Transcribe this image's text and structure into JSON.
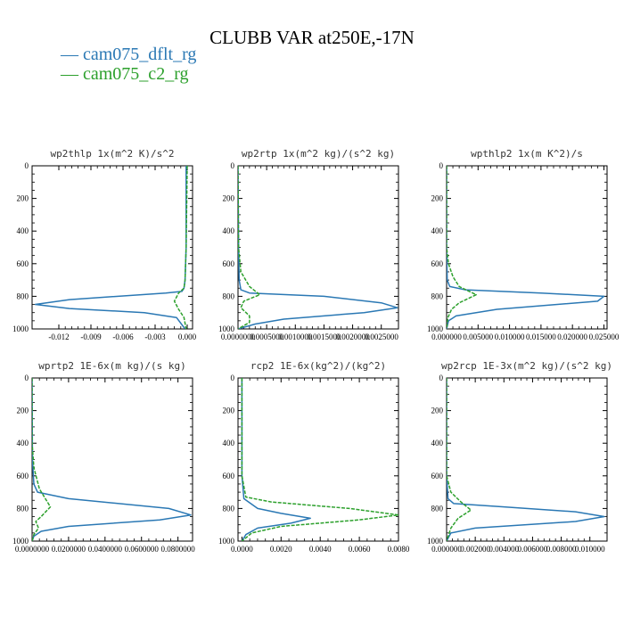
{
  "title": "CLUBB VAR at250E,-17N",
  "legend": [
    {
      "label": "— cam075_dflt_rg",
      "color": "#2a78b4"
    },
    {
      "label": "— cam075_c2_rg",
      "color": "#2ca02c"
    }
  ],
  "chart_data": [
    {
      "type": "line",
      "title": "wp2thlp  1x(m^2 K)/s^2",
      "xlim": [
        -0.0145,
        0.0005
      ],
      "ylim": [
        1000,
        0
      ],
      "xticks": [
        -0.012,
        -0.009,
        -0.006,
        -0.003,
        0.0
      ],
      "xtick_labels": [
        "-0.012",
        "-0.009",
        "-0.006",
        "-0.003",
        "0.000"
      ],
      "yticks": [
        0,
        200,
        400,
        600,
        800,
        1000
      ],
      "series": [
        {
          "name": "cam075_dflt_rg",
          "color": "#2a78b4",
          "x": [
            -0.0001,
            -0.0001,
            -0.0002,
            -0.0003,
            -0.0005,
            -0.002,
            -0.011,
            -0.0142,
            -0.011,
            -0.004,
            -0.001,
            -0.0002
          ],
          "y": [
            0,
            500,
            700,
            750,
            770,
            780,
            820,
            850,
            875,
            900,
            930,
            1000
          ]
        },
        {
          "name": "cam075_c2_rg",
          "color": "#2ca02c",
          "dashed": true,
          "x": [
            0.0,
            -0.0001,
            -0.0002,
            -0.0003,
            -0.0008,
            -0.0012,
            -0.0008,
            -0.0003,
            -0.0001
          ],
          "y": [
            0,
            500,
            700,
            750,
            780,
            830,
            880,
            930,
            1000
          ]
        }
      ]
    },
    {
      "type": "line",
      "title": "wp2rtp  1x(m^2 kg)/(s^2 kg)",
      "xlim": [
        0,
        0.0028
      ],
      "ylim": [
        1000,
        0
      ],
      "xticks": [
        0,
        0.0005,
        0.001,
        0.0015,
        0.002,
        0.0025
      ],
      "xtick_labels": [
        "0.0000000",
        "0.0005000",
        "0.0010000",
        "0.0015000",
        "0.0020000",
        "0.0025000"
      ],
      "yticks": [
        0,
        200,
        400,
        600,
        800,
        1000
      ],
      "series": [
        {
          "name": "cam075_dflt_rg",
          "color": "#2a78b4",
          "x": [
            0.0,
            1e-05,
            2e-05,
            5e-05,
            0.0002,
            0.0015,
            0.0025,
            0.00278,
            0.0022,
            0.0008,
            0.0003,
            0.0
          ],
          "y": [
            0,
            500,
            700,
            760,
            780,
            800,
            840,
            870,
            900,
            940,
            970,
            1000
          ]
        },
        {
          "name": "cam075_c2_rg",
          "color": "#2ca02c",
          "dashed": true,
          "x": [
            0.0,
            1e-05,
            5e-05,
            0.0002,
            0.00038,
            0.0001,
            5e-05,
            0.0002,
            0.0002,
            0.0
          ],
          "y": [
            0,
            500,
            650,
            740,
            790,
            830,
            870,
            920,
            960,
            1000
          ]
        }
      ]
    },
    {
      "type": "line",
      "title": "wpthlp2  1x(m K^2)/s",
      "xlim": [
        0,
        0.0255
      ],
      "ylim": [
        1000,
        0
      ],
      "xticks": [
        0,
        0.005,
        0.01,
        0.015,
        0.02,
        0.025
      ],
      "xtick_labels": [
        "0.000000",
        "0.005000",
        "0.010000",
        "0.015000",
        "0.020000",
        "0.025000"
      ],
      "yticks": [
        0,
        200,
        400,
        600,
        800,
        1000
      ],
      "series": [
        {
          "name": "cam075_dflt_rg",
          "color": "#2a78b4",
          "x": [
            0.0,
            0.0,
            0.0001,
            0.0005,
            0.003,
            0.015,
            0.025,
            0.024,
            0.008,
            0.0015,
            0.0003,
            0.0
          ],
          "y": [
            0,
            500,
            700,
            740,
            760,
            780,
            800,
            830,
            880,
            920,
            950,
            1000
          ]
        },
        {
          "name": "cam075_c2_rg",
          "color": "#2ca02c",
          "dashed": true,
          "x": [
            0.0,
            0.0,
            0.0003,
            0.001,
            0.002,
            0.0047,
            0.002,
            0.0008,
            0.0002,
            0.0
          ],
          "y": [
            0,
            500,
            600,
            680,
            740,
            790,
            840,
            880,
            930,
            1000
          ]
        }
      ]
    },
    {
      "type": "line",
      "title": "wprtp2  1E-6x(m kg)/(s kg)",
      "xlim": [
        0,
        0.088
      ],
      "ylim": [
        1000,
        0
      ],
      "xticks": [
        0,
        0.02,
        0.04,
        0.06,
        0.08
      ],
      "xtick_labels": [
        "0.0000000",
        "0.0200000",
        "0.0400000",
        "0.0600000",
        "0.0800000"
      ],
      "yticks": [
        0,
        200,
        400,
        600,
        800,
        1000
      ],
      "series": [
        {
          "name": "cam075_dflt_rg",
          "color": "#2a78b4",
          "x": [
            0.0,
            0.0002,
            0.001,
            0.003,
            0.02,
            0.075,
            0.087,
            0.07,
            0.02,
            0.005,
            0.001,
            0.0
          ],
          "y": [
            0,
            500,
            650,
            700,
            740,
            800,
            840,
            870,
            910,
            940,
            970,
            1000
          ]
        },
        {
          "name": "cam075_c2_rg",
          "color": "#2ca02c",
          "dashed": true,
          "x": [
            0.0,
            0.0,
            0.001,
            0.004,
            0.01,
            0.005,
            0.002,
            0.0035,
            0.001,
            0.0
          ],
          "y": [
            0,
            400,
            550,
            680,
            790,
            850,
            880,
            920,
            960,
            1000
          ]
        }
      ]
    },
    {
      "type": "line",
      "title": "rcp2  1E-6x(kg^2)/(kg^2)",
      "xlim": [
        -0.0002,
        0.008
      ],
      "ylim": [
        1000,
        0
      ],
      "xticks": [
        0,
        0.002,
        0.004,
        0.006,
        0.008
      ],
      "xtick_labels": [
        "0.0000",
        "0.0020",
        "0.0040",
        "0.0060",
        "0.0080"
      ],
      "yticks": [
        0,
        200,
        400,
        600,
        800,
        1000
      ],
      "series": [
        {
          "name": "cam075_dflt_rg",
          "color": "#2a78b4",
          "x": [
            0.0,
            0.0,
            0.0001,
            0.0008,
            0.002,
            0.0035,
            0.0025,
            0.0008,
            0.0002,
            0.0
          ],
          "y": [
            0,
            600,
            740,
            800,
            830,
            860,
            890,
            920,
            960,
            1000
          ]
        },
        {
          "name": "cam075_c2_rg",
          "color": "#2ca02c",
          "dashed": true,
          "x": [
            0.0,
            0.0,
            0.0002,
            0.0015,
            0.0055,
            0.008,
            0.006,
            0.002,
            0.0005,
            0.0
          ],
          "y": [
            0,
            600,
            730,
            760,
            800,
            840,
            870,
            910,
            950,
            1000
          ]
        }
      ]
    },
    {
      "type": "line",
      "title": "wp2rcp  1E-3x(m^2 kg)/(s^2 kg)",
      "xlim": [
        0,
        0.0112
      ],
      "ylim": [
        1000,
        0
      ],
      "xticks": [
        0,
        0.002,
        0.004,
        0.006,
        0.008,
        0.01
      ],
      "xtick_labels": [
        "0.000000",
        "0.002000",
        "0.004000",
        "0.006000",
        "0.008000",
        "0.010000"
      ],
      "yticks": [
        0,
        200,
        400,
        600,
        800,
        1000
      ],
      "series": [
        {
          "name": "cam075_dflt_rg",
          "color": "#2a78b4",
          "x": [
            0.0,
            0.0,
            0.0001,
            0.0005,
            0.004,
            0.009,
            0.011,
            0.009,
            0.002,
            0.0003,
            0.0
          ],
          "y": [
            0,
            600,
            740,
            770,
            790,
            820,
            850,
            880,
            920,
            950,
            1000
          ]
        },
        {
          "name": "cam075_c2_rg",
          "color": "#2ca02c",
          "dashed": true,
          "x": [
            0.0,
            0.0,
            0.0003,
            0.001,
            0.0017,
            0.0008,
            0.0003,
            0.0
          ],
          "y": [
            0,
            600,
            700,
            760,
            810,
            860,
            920,
            1000
          ]
        }
      ]
    }
  ]
}
